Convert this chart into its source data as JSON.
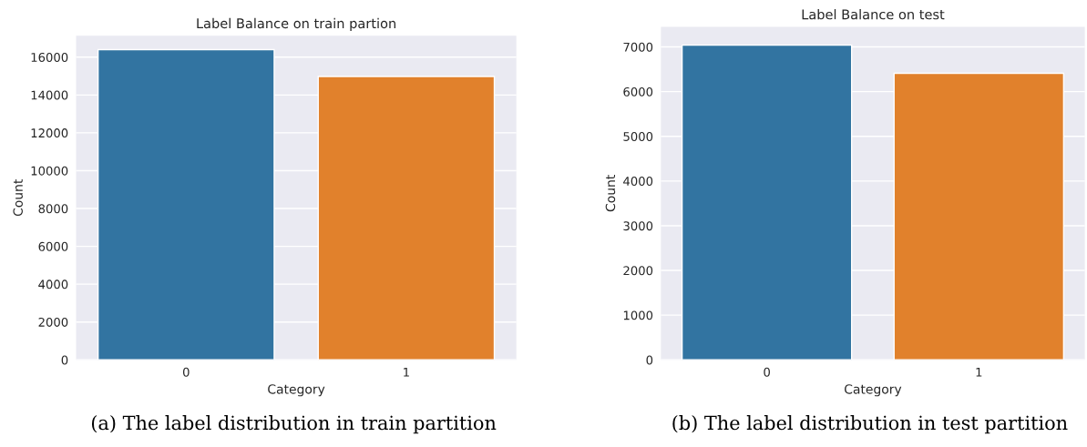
{
  "chart_data": [
    {
      "type": "bar",
      "title": "Label Balance on train partion",
      "xlabel": "Category",
      "ylabel": "Count",
      "categories": [
        "0",
        "1"
      ],
      "values": [
        16400,
        14980
      ],
      "colors": [
        "#3274a1",
        "#e1812c"
      ],
      "ylim": [
        0,
        17130
      ],
      "yticks": [
        0,
        2000,
        4000,
        6000,
        8000,
        10000,
        12000,
        14000,
        16000
      ],
      "grid": "y",
      "annotations": [
        "(a) The label distribution in train partition"
      ]
    },
    {
      "type": "bar",
      "title": "Label Balance on test",
      "xlabel": "Category",
      "ylabel": "Count",
      "categories": [
        "0",
        "1"
      ],
      "values": [
        7040,
        6410
      ],
      "colors": [
        "#3274a1",
        "#e1812c"
      ],
      "ylim": [
        0,
        7450
      ],
      "yticks": [
        0,
        1000,
        2000,
        3000,
        4000,
        5000,
        6000,
        7000
      ],
      "grid": "y",
      "annotations": [
        "(b) The label distribution in test partition"
      ]
    }
  ]
}
